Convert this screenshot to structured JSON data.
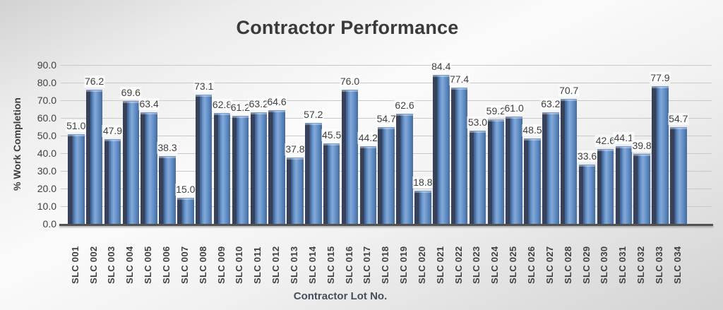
{
  "chart_data": {
    "type": "bar",
    "title": "Contractor Performance",
    "xlabel": "Contractor Lot No.",
    "ylabel": "% Work Completion",
    "ylim": [
      0,
      90
    ],
    "ytick_step": 10,
    "yticks": [
      "0.0",
      "10.0",
      "20.0",
      "30.0",
      "40.0",
      "50.0",
      "60.0",
      "70.0",
      "80.0",
      "90.0"
    ],
    "grid": true,
    "legend_position": "none",
    "data_labels": true,
    "categories": [
      "SLC 001",
      "SLC 002",
      "SLC 003",
      "SLC 004",
      "SLC 005",
      "SLC 006",
      "SLC 007",
      "SLC 008",
      "SLC 009",
      "SLC 010",
      "SLC 011",
      "SLC 012",
      "SLC 013",
      "SLC 014",
      "SLC 015",
      "SLC 016",
      "SLC 017",
      "SLC 018",
      "SLC 019",
      "SLC 020",
      "SLC 021",
      "SLC 022",
      "SLC 023",
      "SLC 024",
      "SLC 025",
      "SLC 026",
      "SLC 027",
      "SLC 028",
      "SLC 029",
      "SLC 030",
      "SLC 031",
      "SLC 032",
      "SLC 033",
      "SLC 034"
    ],
    "values": [
      51.0,
      76.2,
      47.9,
      69.6,
      63.4,
      38.3,
      15.0,
      73.1,
      62.8,
      61.2,
      63.2,
      64.6,
      37.8,
      57.2,
      45.5,
      76.0,
      44.2,
      54.7,
      62.6,
      18.8,
      84.4,
      77.4,
      53.0,
      59.2,
      61.0,
      48.5,
      63.2,
      70.7,
      33.6,
      42.6,
      44.1,
      39.8,
      77.9,
      54.7
    ],
    "colors": {
      "bar_face": "#6190c7",
      "bar_face_light": "#84a8d8",
      "bar_face_edge": "#47699c",
      "bar_side_dark": "#37425a",
      "gridline": "#c9c9c9",
      "axis_line": "#525252",
      "text": "#404040"
    }
  }
}
